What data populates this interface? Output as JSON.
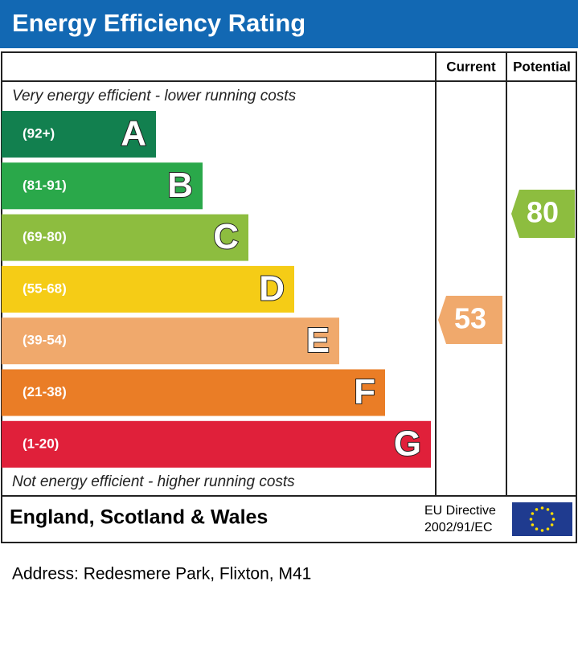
{
  "header": {
    "title": "Energy Efficiency Rating"
  },
  "columns": [
    "Current",
    "Potential"
  ],
  "top_note": "Very energy efficient - lower running costs",
  "bottom_note": "Not energy efficient - higher running costs",
  "bands": [
    {
      "range": "(92+)",
      "letter": "A"
    },
    {
      "range": "(81-91)",
      "letter": "B"
    },
    {
      "range": "(69-80)",
      "letter": "C"
    },
    {
      "range": "(55-68)",
      "letter": "D"
    },
    {
      "range": "(39-54)",
      "letter": "E"
    },
    {
      "range": "(21-38)",
      "letter": "F"
    },
    {
      "range": "(1-20)",
      "letter": "G"
    }
  ],
  "current": 53,
  "potential": 80,
  "footer": {
    "region": "England, Scotland & Wales",
    "directive": [
      "EU Directive",
      "2002/91/EC"
    ]
  },
  "address": "Address: Redesmere Park, Flixton, M41"
}
